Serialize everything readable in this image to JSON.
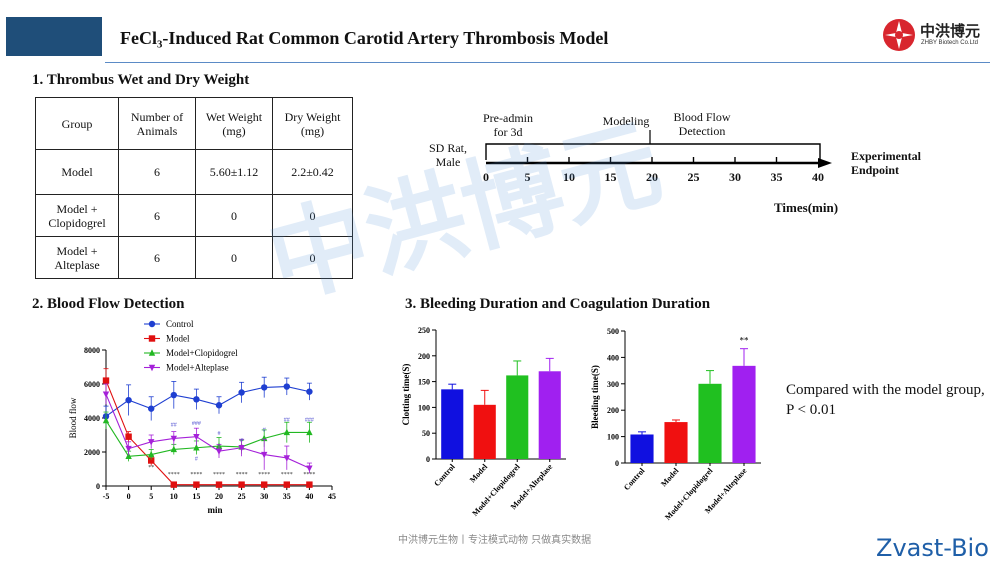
{
  "header": {
    "title": "FeCl₃-Induced Rat Common Carotid Artery Thrombosis Model",
    "logo_name": "中洪博元",
    "logo_sub": "ZHBY Biotech Co.Ltd"
  },
  "watermark": "中洪博元",
  "section1": {
    "title": "1. Thrombus Wet and Dry Weight",
    "table": {
      "headers": [
        "Group",
        "Number of Animals",
        "Wet Weight (mg)",
        "Dry Weight (mg)"
      ],
      "rows": [
        [
          "Model",
          "6",
          "5.60±1.12",
          "2.2±0.42"
        ],
        [
          "Model + Clopidogrel",
          "6",
          "0",
          "0"
        ],
        [
          "Model + Alteplase",
          "6",
          "0",
          "0"
        ]
      ]
    }
  },
  "timeline": {
    "subject": "SD Rat, Male",
    "phases": [
      "Pre-admin for 3d",
      "Modeling",
      "Blood Flow Detection"
    ],
    "ticks": [
      "0",
      "5",
      "10",
      "15",
      "20",
      "25",
      "30",
      "35",
      "40"
    ],
    "endpoint": "Experimental Endpoint",
    "axis_label": "Times(min)"
  },
  "section2": {
    "title": "2. Blood Flow Detection"
  },
  "section3": {
    "title": "3. Bleeding Duration and Coagulation Duration"
  },
  "note": "Compared with the model group, P < 0.01",
  "footer": "中洪博元生物丨专注模式动物 只做真实数据",
  "brand": "Zvast-Bio",
  "chart_data": [
    {
      "type": "line",
      "title": "",
      "xlabel": "min",
      "ylabel": "Blood flow",
      "x": [
        -5,
        0,
        5,
        10,
        15,
        20,
        25,
        30,
        35,
        40
      ],
      "xticks": [
        "-5",
        "0",
        "5",
        "10",
        "15",
        "20",
        "25",
        "30",
        "35",
        "40",
        "45"
      ],
      "yticks": [
        "0",
        "2000",
        "4000",
        "6000",
        "8000"
      ],
      "ylim": [
        0,
        8000
      ],
      "xlim": [
        -5,
        45
      ],
      "legend_position": "top",
      "series": [
        {
          "name": "Control",
          "color": "#1f3fd1",
          "marker": "circle",
          "values": [
            4100,
            5050,
            4550,
            5350,
            5100,
            4750,
            5500,
            5800,
            5850,
            5550
          ],
          "errors": [
            600,
            900,
            700,
            800,
            600,
            500,
            600,
            600,
            500,
            500
          ]
        },
        {
          "name": "Model",
          "color": "#e01010",
          "marker": "square",
          "values": [
            6200,
            2900,
            1500,
            80,
            80,
            80,
            80,
            80,
            80,
            80
          ],
          "errors": [
            700,
            300,
            300,
            0,
            0,
            0,
            0,
            0,
            0,
            0
          ]
        },
        {
          "name": "Model+Clopidogrel",
          "color": "#22b822",
          "marker": "triangle",
          "values": [
            3850,
            1750,
            1850,
            2150,
            2250,
            2350,
            2300,
            2800,
            3150,
            3150
          ],
          "errors": [
            500,
            300,
            300,
            300,
            400,
            500,
            400,
            500,
            600,
            600
          ]
        },
        {
          "name": "Model+Alteplase",
          "color": "#a521d9",
          "marker": "triangle-down",
          "values": [
            5400,
            2200,
            2600,
            2800,
            2900,
            2050,
            2250,
            1850,
            1650,
            1050
          ],
          "errors": [
            600,
            400,
            400,
            400,
            500,
            400,
            500,
            900,
            700,
            300
          ]
        }
      ],
      "annotations": [
        {
          "x": 5,
          "y": 1000,
          "text": "**"
        },
        {
          "x": 10,
          "y": 600,
          "text": "****"
        },
        {
          "x": 15,
          "y": 600,
          "text": "****"
        },
        {
          "x": 20,
          "y": 600,
          "text": "****"
        },
        {
          "x": 25,
          "y": 600,
          "text": "****"
        },
        {
          "x": 30,
          "y": 600,
          "text": "****"
        },
        {
          "x": 35,
          "y": 600,
          "text": "****"
        },
        {
          "x": 40,
          "y": 600,
          "text": "****"
        },
        {
          "x": 10,
          "y": 3500,
          "text": "##"
        },
        {
          "x": 15,
          "y": 3600,
          "text": "###"
        },
        {
          "x": 15,
          "y": 1500,
          "text": "#"
        },
        {
          "x": 20,
          "y": 3000,
          "text": "#"
        },
        {
          "x": 25,
          "y": 2600,
          "text": "#"
        },
        {
          "x": 30,
          "y": 3200,
          "text": "#"
        },
        {
          "x": 35,
          "y": 3800,
          "text": "##"
        },
        {
          "x": 40,
          "y": 3800,
          "text": "###"
        }
      ]
    },
    {
      "type": "bar",
      "ylabel": "Clotting time(S)",
      "categories": [
        "Control",
        "Model",
        "Model+Clopidogrel",
        "Model+Alteplase"
      ],
      "values": [
        135,
        105,
        162,
        170
      ],
      "errors": [
        10,
        28,
        28,
        25
      ],
      "colors": [
        "#1010e0",
        "#f01010",
        "#20c020",
        "#a020f0"
      ],
      "ylim": [
        0,
        250
      ],
      "yticks": [
        "0",
        "50",
        "100",
        "150",
        "200",
        "250"
      ]
    },
    {
      "type": "bar",
      "ylabel": "Bleeding time(S)",
      "categories": [
        "Control",
        "Model",
        "Model+Clopidogrel",
        "Model+Alteplase"
      ],
      "values": [
        108,
        155,
        300,
        368
      ],
      "errors": [
        10,
        8,
        50,
        65
      ],
      "colors": [
        "#1010e0",
        "#f01010",
        "#20c020",
        "#a020f0"
      ],
      "ylim": [
        0,
        500
      ],
      "yticks": [
        "0",
        "100",
        "200",
        "300",
        "400",
        "500"
      ],
      "annotation": {
        "category": "Model+Alteplase",
        "text": "**"
      }
    }
  ]
}
